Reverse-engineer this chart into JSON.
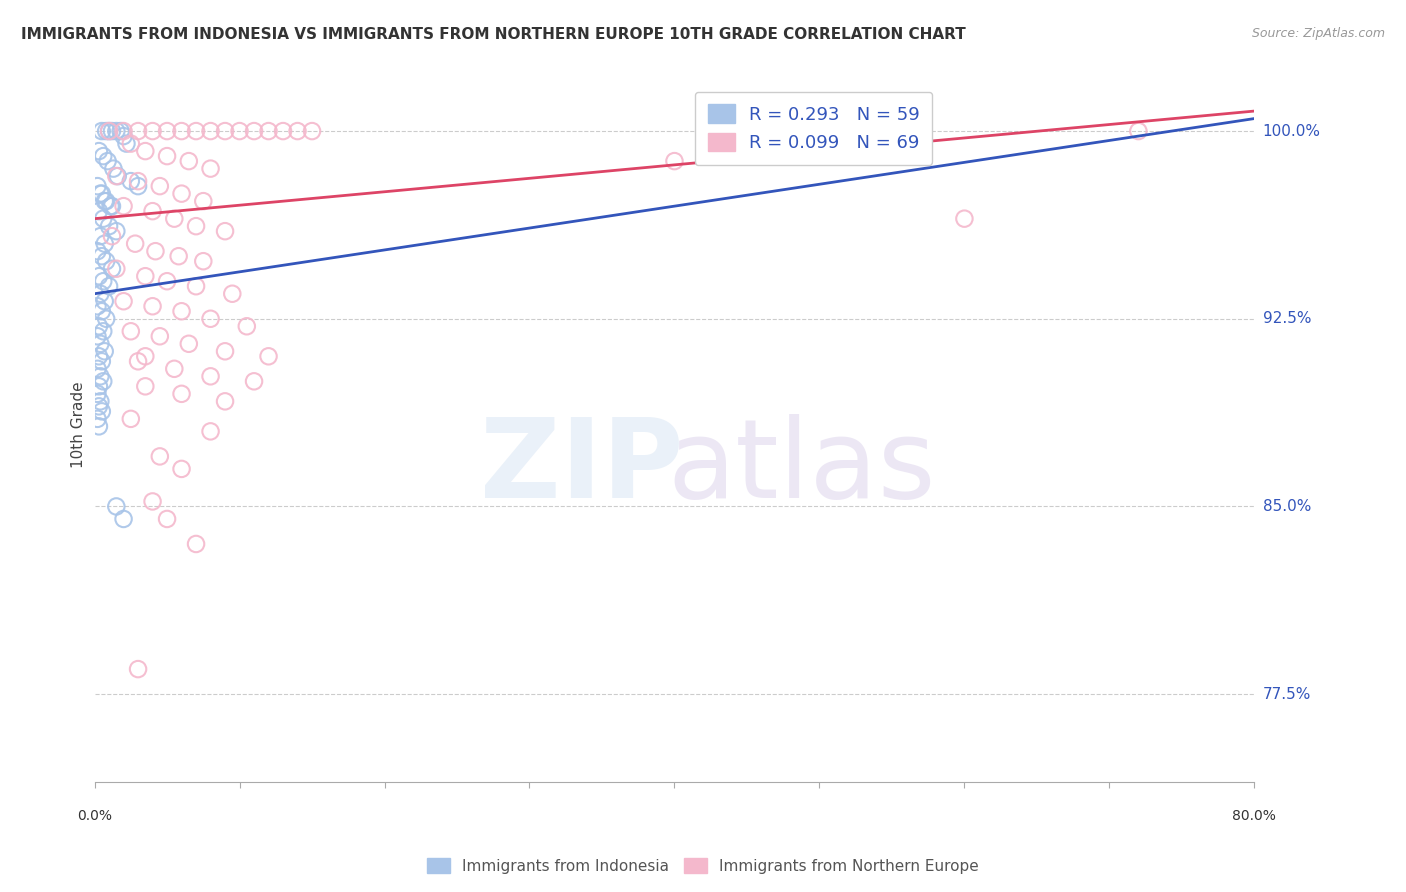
{
  "title": "IMMIGRANTS FROM INDONESIA VS IMMIGRANTS FROM NORTHERN EUROPE 10TH GRADE CORRELATION CHART",
  "source": "Source: ZipAtlas.com",
  "ylabel": "10th Grade",
  "y_ticks": [
    77.5,
    85.0,
    92.5,
    100.0
  ],
  "y_tick_labels": [
    "77.5%",
    "85.0%",
    "92.5%",
    "100.0%"
  ],
  "x_ticks": [
    0.0,
    10.0,
    20.0,
    30.0,
    40.0,
    50.0,
    60.0,
    70.0,
    80.0
  ],
  "x_lim": [
    0.0,
    80.0
  ],
  "y_lim": [
    74.0,
    102.5
  ],
  "legend_indonesia": "R = 0.293   N = 59",
  "legend_northern_europe": "R = 0.099   N = 69",
  "blue_color": "#a8c4e8",
  "pink_color": "#f4b8cc",
  "blue_line_color": "#3355bb",
  "pink_line_color": "#dd4466",
  "blue_scatter": [
    [
      0.5,
      100.0
    ],
    [
      0.8,
      100.0
    ],
    [
      1.0,
      100.0
    ],
    [
      1.2,
      100.0
    ],
    [
      1.5,
      100.0
    ],
    [
      1.8,
      100.0
    ],
    [
      2.0,
      99.8
    ],
    [
      2.2,
      99.5
    ],
    [
      0.3,
      99.2
    ],
    [
      0.6,
      99.0
    ],
    [
      0.9,
      98.8
    ],
    [
      1.3,
      98.5
    ],
    [
      1.6,
      98.2
    ],
    [
      2.5,
      98.0
    ],
    [
      3.0,
      97.8
    ],
    [
      0.4,
      97.5
    ],
    [
      0.7,
      97.2
    ],
    [
      1.1,
      97.0
    ],
    [
      0.2,
      97.8
    ],
    [
      0.5,
      97.5
    ],
    [
      0.8,
      97.2
    ],
    [
      1.2,
      97.0
    ],
    [
      0.3,
      96.8
    ],
    [
      0.6,
      96.5
    ],
    [
      1.0,
      96.2
    ],
    [
      1.5,
      96.0
    ],
    [
      0.4,
      95.8
    ],
    [
      0.7,
      95.5
    ],
    [
      0.2,
      95.2
    ],
    [
      0.5,
      95.0
    ],
    [
      0.8,
      94.8
    ],
    [
      1.2,
      94.5
    ],
    [
      0.3,
      94.2
    ],
    [
      0.6,
      94.0
    ],
    [
      1.0,
      93.8
    ],
    [
      0.4,
      93.5
    ],
    [
      0.7,
      93.2
    ],
    [
      0.2,
      93.0
    ],
    [
      0.5,
      92.8
    ],
    [
      0.8,
      92.5
    ],
    [
      0.3,
      92.2
    ],
    [
      0.6,
      92.0
    ],
    [
      0.2,
      91.8
    ],
    [
      0.4,
      91.5
    ],
    [
      0.7,
      91.2
    ],
    [
      0.3,
      91.0
    ],
    [
      0.5,
      90.8
    ],
    [
      0.2,
      90.5
    ],
    [
      0.4,
      90.2
    ],
    [
      0.6,
      90.0
    ],
    [
      0.3,
      89.8
    ],
    [
      0.2,
      89.5
    ],
    [
      0.4,
      89.2
    ],
    [
      0.3,
      89.0
    ],
    [
      0.5,
      88.8
    ],
    [
      0.2,
      88.5
    ],
    [
      0.3,
      88.2
    ],
    [
      1.5,
      85.0
    ],
    [
      2.0,
      84.5
    ]
  ],
  "pink_scatter": [
    [
      1.0,
      100.0
    ],
    [
      2.0,
      100.0
    ],
    [
      3.0,
      100.0
    ],
    [
      4.0,
      100.0
    ],
    [
      5.0,
      100.0
    ],
    [
      6.0,
      100.0
    ],
    [
      7.0,
      100.0
    ],
    [
      8.0,
      100.0
    ],
    [
      9.0,
      100.0
    ],
    [
      10.0,
      100.0
    ],
    [
      11.0,
      100.0
    ],
    [
      12.0,
      100.0
    ],
    [
      13.0,
      100.0
    ],
    [
      14.0,
      100.0
    ],
    [
      15.0,
      100.0
    ],
    [
      2.5,
      99.5
    ],
    [
      3.5,
      99.2
    ],
    [
      5.0,
      99.0
    ],
    [
      6.5,
      98.8
    ],
    [
      8.0,
      98.5
    ],
    [
      1.5,
      98.2
    ],
    [
      3.0,
      98.0
    ],
    [
      4.5,
      97.8
    ],
    [
      6.0,
      97.5
    ],
    [
      7.5,
      97.2
    ],
    [
      2.0,
      97.0
    ],
    [
      4.0,
      96.8
    ],
    [
      5.5,
      96.5
    ],
    [
      7.0,
      96.2
    ],
    [
      9.0,
      96.0
    ],
    [
      1.2,
      95.8
    ],
    [
      2.8,
      95.5
    ],
    [
      4.2,
      95.2
    ],
    [
      5.8,
      95.0
    ],
    [
      7.5,
      94.8
    ],
    [
      1.5,
      94.5
    ],
    [
      3.5,
      94.2
    ],
    [
      5.0,
      94.0
    ],
    [
      7.0,
      93.8
    ],
    [
      9.5,
      93.5
    ],
    [
      2.0,
      93.2
    ],
    [
      4.0,
      93.0
    ],
    [
      6.0,
      92.8
    ],
    [
      8.0,
      92.5
    ],
    [
      10.5,
      92.2
    ],
    [
      2.5,
      92.0
    ],
    [
      4.5,
      91.8
    ],
    [
      6.5,
      91.5
    ],
    [
      9.0,
      91.2
    ],
    [
      12.0,
      91.0
    ],
    [
      3.0,
      90.8
    ],
    [
      5.5,
      90.5
    ],
    [
      8.0,
      90.2
    ],
    [
      11.0,
      90.0
    ],
    [
      3.5,
      89.8
    ],
    [
      6.0,
      89.5
    ],
    [
      9.0,
      89.2
    ],
    [
      40.0,
      98.8
    ],
    [
      60.0,
      96.5
    ],
    [
      72.0,
      100.0
    ],
    [
      2.5,
      88.5
    ],
    [
      4.0,
      85.2
    ],
    [
      5.0,
      84.5
    ],
    [
      8.0,
      88.0
    ],
    [
      3.0,
      78.5
    ],
    [
      7.0,
      83.5
    ],
    [
      3.5,
      91.0
    ],
    [
      4.5,
      87.0
    ],
    [
      6.0,
      86.5
    ]
  ],
  "blue_trendline_x": [
    0.0,
    80.0
  ],
  "blue_trendline_y": [
    93.5,
    100.5
  ],
  "pink_trendline_y": [
    96.5,
    100.8
  ]
}
